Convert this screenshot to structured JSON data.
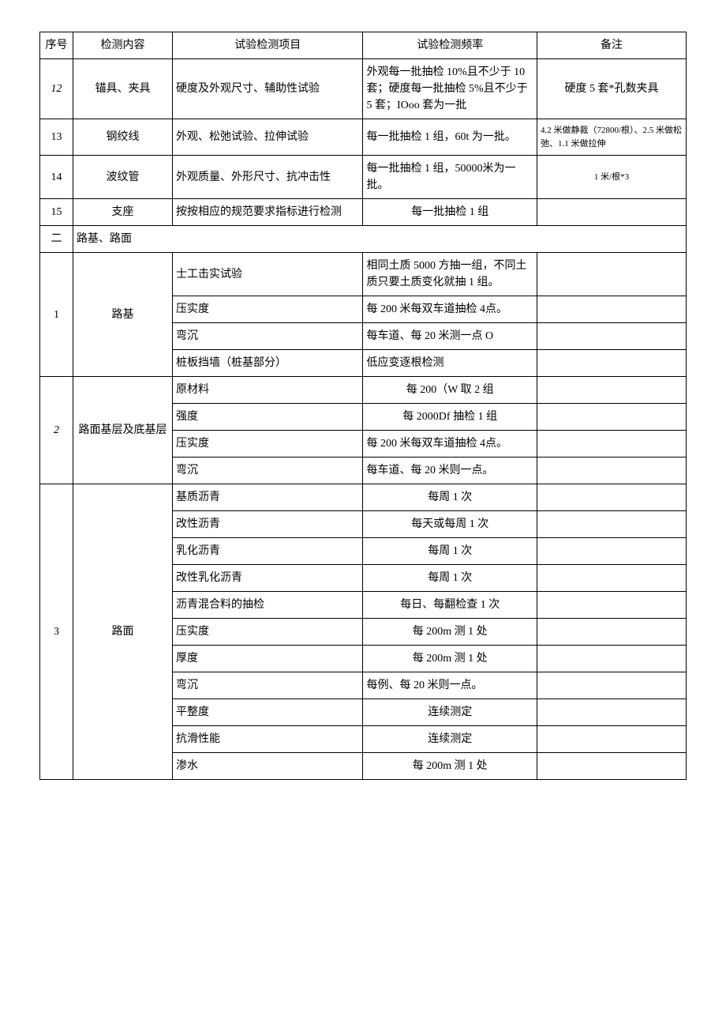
{
  "header": {
    "seq": "序号",
    "content": "检测内容",
    "item": "试验检测项目",
    "freq": "试验检测频率",
    "note": "备注"
  },
  "r12": {
    "seq": "12",
    "content": "锚具、夹具",
    "item": "硬度及外观尺寸、辅助性试验",
    "freq": "外观每一批抽检 10%且不少于 10 套；硬度每一批抽检 5%且不少于 5 套；IOoo 套为一批",
    "note": "硬度 5 套*孔数夹具"
  },
  "r13": {
    "seq": "13",
    "content": "钢绞线",
    "item": "外观、松弛试验、拉伸试验",
    "freq": "每一批抽检 1 组，60t 为一批。",
    "note": "4.2 米做静裁（72800/根）、2.5 米做松弛、1.1 米做拉伸"
  },
  "r14": {
    "seq": "14",
    "content": "波纹管",
    "item": "外观质量、外形尺寸、抗冲击性",
    "freq": "每一批抽检 1 组，50000米为一批。",
    "note": "1 米/根*3"
  },
  "r15": {
    "seq": "15",
    "content": "支座",
    "item": "按按相应的规范要求指标进行检测",
    "freq": "每一批抽检 1 组",
    "note": ""
  },
  "sec2": {
    "seq": "二",
    "title": "路基、路面"
  },
  "g1": {
    "seq": "1",
    "content": "路基",
    "rows": [
      {
        "item": "士工击实试验",
        "freq": "相同土质 5000 方抽一组，不同土质只要土质变化就抽 1 组。",
        "note": ""
      },
      {
        "item": "压实度",
        "freq": "每 200 米每双车道抽检 4点。",
        "note": ""
      },
      {
        "item": "弯沉",
        "freq": "每车道、每 20 米测一点 O",
        "note": ""
      },
      {
        "item": "桩板挡墙（桩基部分）",
        "freq": "低应变逐根检测",
        "note": ""
      }
    ]
  },
  "g2": {
    "seq": "2",
    "content": "路面基层及底基层",
    "rows": [
      {
        "item": "原材料",
        "freq": "每 200（W 取 2 组",
        "note": ""
      },
      {
        "item": "强度",
        "freq": "每 2000Df 抽检 1 组",
        "note": ""
      },
      {
        "item": "压实度",
        "freq": "每 200 米每双车道抽检 4点。",
        "note": ""
      },
      {
        "item": "弯沉",
        "freq": "每车道、每 20 米则一点。",
        "note": ""
      }
    ]
  },
  "g3": {
    "seq": "3",
    "content": "路面",
    "rows": [
      {
        "item": "基质沥青",
        "freq": "每周 1 次",
        "note": ""
      },
      {
        "item": "改性沥青",
        "freq": "每天或每周 1 次",
        "note": ""
      },
      {
        "item": "乳化沥青",
        "freq": "每周 1 次",
        "note": ""
      },
      {
        "item": "改性乳化沥青",
        "freq": "每周 1 次",
        "note": ""
      },
      {
        "item": "沥青混合料的抽检",
        "freq": "每日、每翻检查 1 次",
        "note": ""
      },
      {
        "item": "压实度",
        "freq": "每 200m 测 1 处",
        "note": ""
      },
      {
        "item": "厚度",
        "freq": "每 200m 测 1 处",
        "note": ""
      },
      {
        "item": "弯沉",
        "freq": "每例、每 20 米则一点。",
        "note": ""
      },
      {
        "item": "平整度",
        "freq": "连续测定",
        "note": ""
      },
      {
        "item": "抗滑性能",
        "freq": "连续测定",
        "note": ""
      },
      {
        "item": "渗水",
        "freq": "每 200m 测 1 处",
        "note": ""
      }
    ]
  }
}
